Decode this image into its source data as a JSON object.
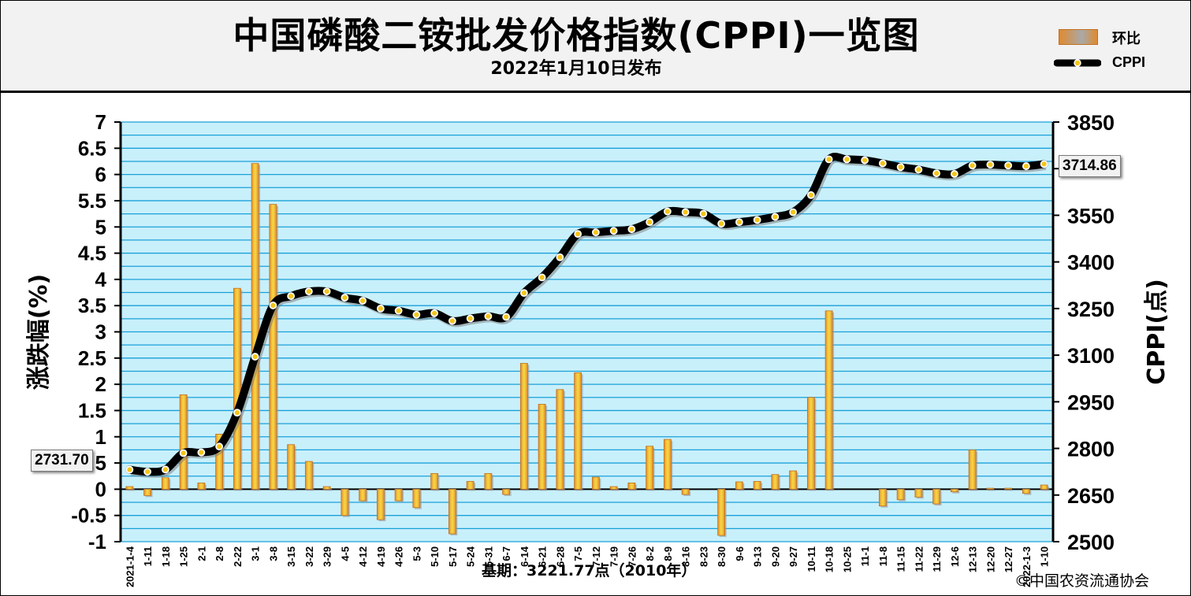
{
  "header": {
    "title": "中国磷酸二铵批发价格指数(CPPI)一览图",
    "subtitle": "2022年1月10日发布",
    "legend_bar": "环比",
    "legend_line": "CPPI"
  },
  "notes": {
    "base": "基期：3221.77点（2010年）",
    "source": "©中国农资流通协会"
  },
  "callouts": {
    "first": "2731.70",
    "last": "3714.86"
  },
  "colors": {
    "plot_bg": "#c8f0fb",
    "grid": "#1aa0d8",
    "bar": "#e08a2e",
    "bar_inner": "#f5d040",
    "line": "#000000",
    "marker": "#f5c518"
  },
  "chart_data": {
    "type": "bar",
    "categories": [
      "2021-1-4",
      "1-11",
      "1-18",
      "1-25",
      "2-1",
      "2-8",
      "2-22",
      "3-1",
      "3-8",
      "3-15",
      "3-22",
      "3-29",
      "4-5",
      "4-12",
      "4-19",
      "4-26",
      "5-3",
      "5-10",
      "5-17",
      "5-24",
      "5-31",
      "6-7",
      "6-14",
      "6-21",
      "6-28",
      "7-5",
      "7-12",
      "7-19",
      "7-26",
      "8-2",
      "8-9",
      "8-16",
      "8-23",
      "8-30",
      "9-6",
      "9-13",
      "9-20",
      "9-27",
      "10-11",
      "10-18",
      "10-25",
      "11-1",
      "11-8",
      "11-15",
      "11-22",
      "11-29",
      "12-6",
      "12-13",
      "12-20",
      "12-27",
      "2022-1-3",
      "1-10"
    ],
    "series": [
      {
        "name": "环比",
        "axis": "left",
        "type": "bar",
        "values": [
          0.05,
          -0.12,
          0.22,
          1.8,
          0.12,
          1.05,
          3.83,
          6.21,
          5.43,
          0.85,
          0.53,
          0.05,
          -0.5,
          -0.22,
          -0.58,
          -0.22,
          -0.35,
          0.3,
          -0.85,
          0.15,
          0.3,
          -0.1,
          2.4,
          1.62,
          1.9,
          2.22,
          0.23,
          0.05,
          0.12,
          0.82,
          0.95,
          -0.1,
          0.0,
          -0.88,
          0.14,
          0.15,
          0.28,
          0.35,
          1.75,
          3.4,
          0.0,
          0.0,
          -0.32,
          -0.2,
          -0.15,
          -0.28,
          -0.05,
          0.75,
          0.02,
          0.02,
          -0.08,
          0.08
        ]
      },
      {
        "name": "CPPI",
        "axis": "right",
        "type": "line",
        "values": [
          2731.7,
          2725,
          2732,
          2785,
          2787,
          2806,
          2915,
          3095,
          3260,
          3290,
          3305,
          3305,
          3285,
          3275,
          3250,
          3243,
          3230,
          3235,
          3210,
          3218,
          3225,
          3223,
          3300,
          3350,
          3415,
          3490,
          3495,
          3500,
          3505,
          3528,
          3562,
          3560,
          3555,
          3523,
          3528,
          3535,
          3545,
          3560,
          3615,
          3730,
          3730,
          3727,
          3717,
          3705,
          3697,
          3685,
          3683,
          3710,
          3713,
          3710,
          3708,
          3714.86
        ]
      }
    ],
    "y_left": {
      "label": "涨跌幅(%)",
      "min": -1,
      "max": 7,
      "ticks": [
        "-1",
        "-0.5",
        "0",
        "0.5",
        "1",
        "1.5",
        "2",
        "2.5",
        "3",
        "3.5",
        "4",
        "4.5",
        "5",
        "5.5",
        "6",
        "6.5",
        "7"
      ]
    },
    "y_right": {
      "label": "CPPI(点)",
      "min": 2500,
      "max": 3850,
      "ticks": [
        "2500",
        "2650",
        "2800",
        "2950",
        "3100",
        "3250",
        "3400",
        "3550",
        "3700",
        "3850"
      ]
    },
    "grid": true,
    "legend": "top-right"
  }
}
